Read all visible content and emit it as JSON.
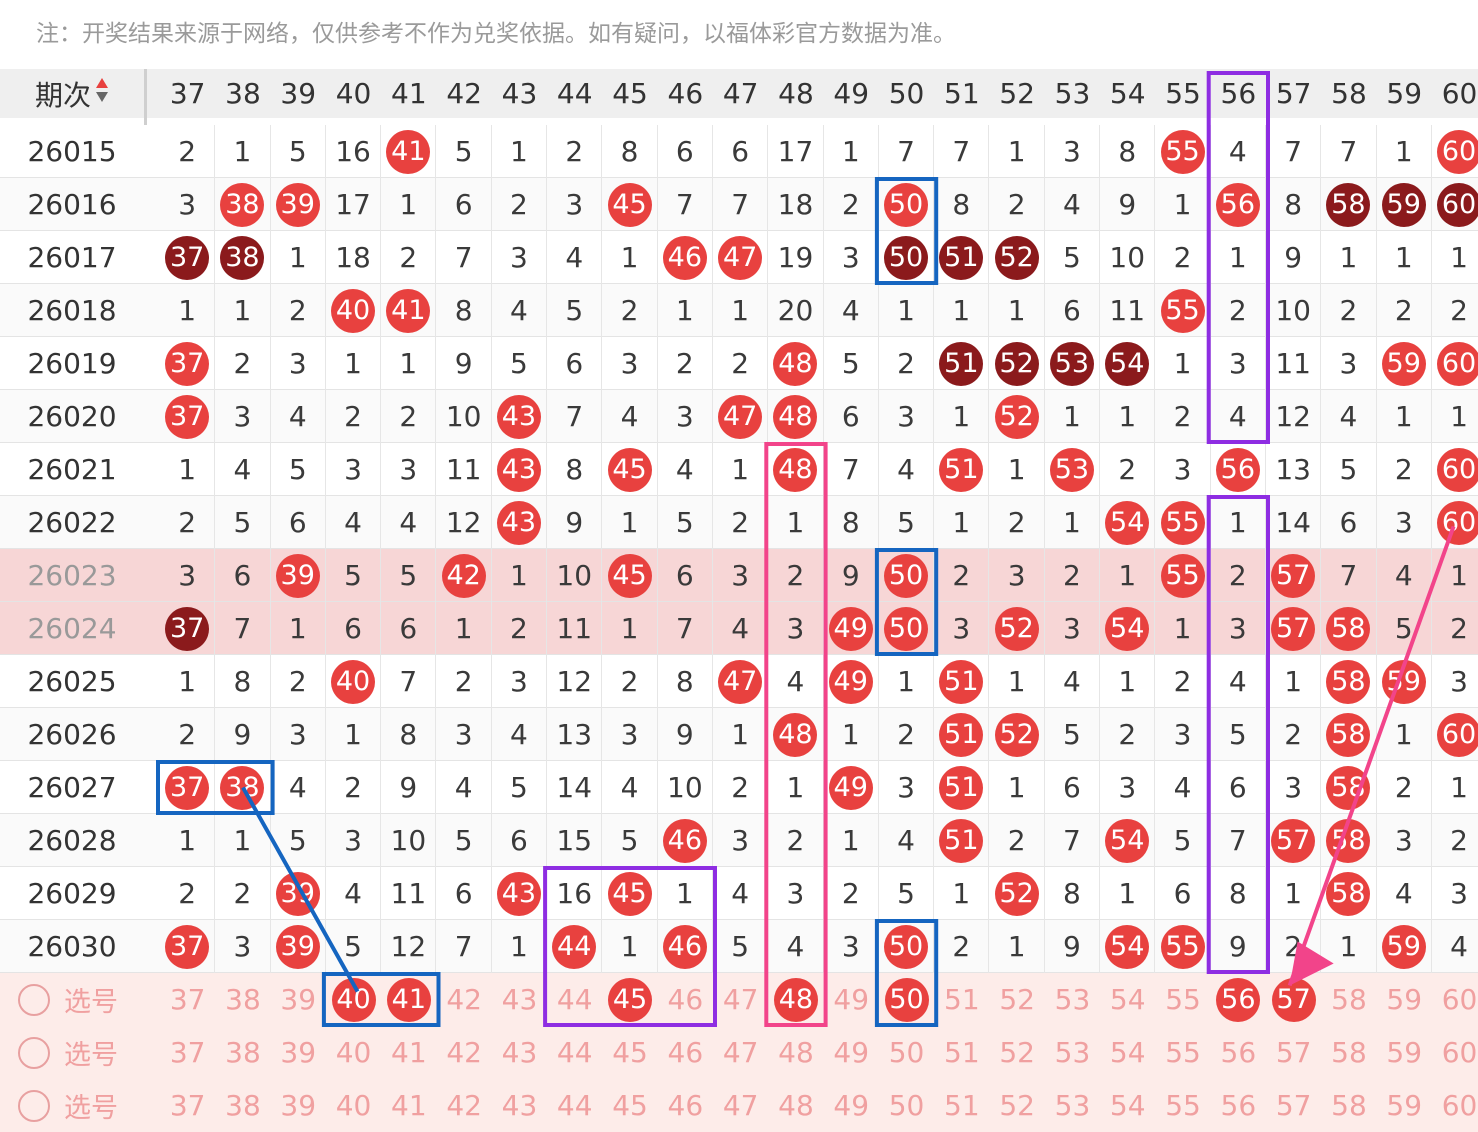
{
  "note": "注：开奖结果来源于网络，仅供参考不作为兑奖依据。如有疑问，以福体彩官方数据为准。",
  "header": {
    "period_label": "期次",
    "sort_icon": "sort-updown-icon",
    "columns": [
      "37",
      "38",
      "39",
      "40",
      "41",
      "42",
      "43",
      "44",
      "45",
      "46",
      "47",
      "48",
      "49",
      "50",
      "51",
      "52",
      "53",
      "54",
      "55",
      "56",
      "57",
      "58",
      "59",
      "60"
    ]
  },
  "colors": {
    "ball_red": "#e8413f",
    "ball_dark": "#8b1a1c",
    "text": "#3a3a3a",
    "highlight_row": "#f7d6d6",
    "select_bg": "#fdece9",
    "select_text": "#f0a0a0",
    "box_blue": "#1565c0",
    "box_purple": "#8e2de2",
    "box_pink": "#f2448a"
  },
  "rows": [
    {
      "period": "26015",
      "cells": [
        "2",
        "1",
        "5",
        "16",
        "41",
        "5",
        "1",
        "2",
        "8",
        "6",
        "6",
        "17",
        "1",
        "7",
        "7",
        "1",
        "3",
        "8",
        "55",
        "4",
        "7",
        "7",
        "1",
        "60"
      ],
      "balls": {
        "41": "r",
        "55": "r",
        "60": "r"
      }
    },
    {
      "period": "26016",
      "cells": [
        "3",
        "38",
        "39",
        "17",
        "1",
        "6",
        "2",
        "3",
        "45",
        "7",
        "7",
        "18",
        "2",
        "50",
        "8",
        "2",
        "4",
        "9",
        "1",
        "56",
        "8",
        "58",
        "59",
        "60"
      ],
      "balls": {
        "38": "r",
        "39": "r",
        "45": "r",
        "50": "r",
        "56": "r",
        "58": "d",
        "59": "d",
        "60": "d"
      }
    },
    {
      "period": "26017",
      "cells": [
        "37",
        "38",
        "1",
        "18",
        "2",
        "7",
        "3",
        "4",
        "1",
        "46",
        "47",
        "19",
        "3",
        "50",
        "51",
        "52",
        "5",
        "10",
        "2",
        "1",
        "9",
        "1",
        "1",
        "1"
      ],
      "balls": {
        "37": "d",
        "38": "d",
        "46": "r",
        "47": "r",
        "50": "d",
        "51": "d",
        "52": "d"
      }
    },
    {
      "period": "26018",
      "cells": [
        "1",
        "1",
        "2",
        "40",
        "41",
        "8",
        "4",
        "5",
        "2",
        "1",
        "1",
        "20",
        "4",
        "1",
        "1",
        "1",
        "6",
        "11",
        "55",
        "2",
        "10",
        "2",
        "2",
        "2"
      ],
      "balls": {
        "40": "r",
        "41": "r",
        "55": "r"
      }
    },
    {
      "period": "26019",
      "cells": [
        "37",
        "2",
        "3",
        "1",
        "1",
        "9",
        "5",
        "6",
        "3",
        "2",
        "2",
        "48",
        "5",
        "2",
        "51",
        "52",
        "53",
        "54",
        "1",
        "3",
        "11",
        "3",
        "59",
        "60"
      ],
      "balls": {
        "37": "r",
        "48": "r",
        "51": "d",
        "52": "d",
        "53": "d",
        "54": "d",
        "59": "r",
        "60": "r"
      }
    },
    {
      "period": "26020",
      "cells": [
        "37",
        "3",
        "4",
        "2",
        "2",
        "10",
        "43",
        "7",
        "4",
        "3",
        "47",
        "48",
        "6",
        "3",
        "1",
        "52",
        "1",
        "1",
        "2",
        "4",
        "12",
        "4",
        "1",
        "1"
      ],
      "balls": {
        "37": "r",
        "43": "r",
        "47": "r",
        "48": "r",
        "52": "r"
      }
    },
    {
      "period": "26021",
      "cells": [
        "1",
        "4",
        "5",
        "3",
        "3",
        "11",
        "43",
        "8",
        "45",
        "4",
        "1",
        "48",
        "7",
        "4",
        "51",
        "1",
        "53",
        "2",
        "3",
        "56",
        "13",
        "5",
        "2",
        "60"
      ],
      "balls": {
        "43": "r",
        "45": "r",
        "48": "r",
        "51": "r",
        "53": "r",
        "56": "r",
        "60": "r"
      }
    },
    {
      "period": "26022",
      "cells": [
        "2",
        "5",
        "6",
        "4",
        "4",
        "12",
        "43",
        "9",
        "1",
        "5",
        "2",
        "1",
        "8",
        "5",
        "1",
        "2",
        "1",
        "54",
        "55",
        "1",
        "14",
        "6",
        "3",
        "60"
      ],
      "balls": {
        "43": "r",
        "54": "r",
        "55": "r",
        "60": "r"
      }
    },
    {
      "period": "26023",
      "cells": [
        "3",
        "6",
        "39",
        "5",
        "5",
        "42",
        "1",
        "10",
        "45",
        "6",
        "3",
        "2",
        "9",
        "50",
        "2",
        "3",
        "2",
        "1",
        "55",
        "2",
        "57",
        "7",
        "4",
        "1"
      ],
      "balls": {
        "39": "r",
        "42": "r",
        "45": "r",
        "50": "r",
        "55": "r",
        "57": "r"
      }
    },
    {
      "period": "26024",
      "cells": [
        "37",
        "7",
        "1",
        "6",
        "6",
        "1",
        "2",
        "11",
        "1",
        "7",
        "4",
        "3",
        "49",
        "50",
        "3",
        "52",
        "3",
        "54",
        "1",
        "3",
        "57",
        "58",
        "5",
        "2"
      ],
      "balls": {
        "37": "d",
        "49": "r",
        "50": "r",
        "52": "r",
        "54": "r",
        "57": "r",
        "58": "r"
      }
    },
    {
      "period": "26025",
      "cells": [
        "1",
        "8",
        "2",
        "40",
        "7",
        "2",
        "3",
        "12",
        "2",
        "8",
        "47",
        "4",
        "49",
        "1",
        "51",
        "1",
        "4",
        "1",
        "2",
        "4",
        "1",
        "58",
        "59",
        "3"
      ],
      "balls": {
        "40": "r",
        "47": "r",
        "49": "r",
        "51": "r",
        "58": "r",
        "59": "r"
      }
    },
    {
      "period": "26026",
      "cells": [
        "2",
        "9",
        "3",
        "1",
        "8",
        "3",
        "4",
        "13",
        "3",
        "9",
        "1",
        "48",
        "1",
        "2",
        "51",
        "52",
        "5",
        "2",
        "3",
        "5",
        "2",
        "58",
        "1",
        "60"
      ],
      "balls": {
        "48": "r",
        "51": "r",
        "52": "r",
        "58": "r",
        "60": "r"
      }
    },
    {
      "period": "26027",
      "cells": [
        "37",
        "38",
        "4",
        "2",
        "9",
        "4",
        "5",
        "14",
        "4",
        "10",
        "2",
        "1",
        "49",
        "3",
        "51",
        "1",
        "6",
        "3",
        "4",
        "6",
        "3",
        "58",
        "2",
        "1"
      ],
      "balls": {
        "37": "r",
        "38": "r",
        "49": "r",
        "51": "r",
        "58": "r"
      }
    },
    {
      "period": "26028",
      "cells": [
        "1",
        "1",
        "5",
        "3",
        "10",
        "5",
        "6",
        "15",
        "5",
        "46",
        "3",
        "2",
        "1",
        "4",
        "51",
        "2",
        "7",
        "54",
        "5",
        "7",
        "57",
        "58",
        "3",
        "2"
      ],
      "balls": {
        "46": "r",
        "51": "r",
        "54": "r",
        "57": "r",
        "58": "r"
      }
    },
    {
      "period": "26029",
      "cells": [
        "2",
        "2",
        "39",
        "4",
        "11",
        "6",
        "43",
        "16",
        "45",
        "1",
        "4",
        "3",
        "2",
        "5",
        "1",
        "52",
        "8",
        "1",
        "6",
        "8",
        "1",
        "58",
        "4",
        "3"
      ],
      "balls": {
        "39": "r",
        "43": "r",
        "45": "r",
        "52": "r",
        "58": "r"
      }
    },
    {
      "period": "26030",
      "cells": [
        "37",
        "3",
        "39",
        "5",
        "12",
        "7",
        "1",
        "44",
        "1",
        "46",
        "5",
        "4",
        "3",
        "50",
        "2",
        "1",
        "9",
        "54",
        "55",
        "9",
        "2",
        "1",
        "59",
        "4"
      ],
      "balls": {
        "37": "r",
        "39": "r",
        "44": "r",
        "46": "r",
        "50": "r",
        "54": "r",
        "55": "r",
        "59": "r"
      }
    }
  ],
  "select_rows": [
    {
      "label": "选号",
      "selected": [
        "40",
        "41",
        "45",
        "48",
        "50",
        "56",
        "57"
      ]
    },
    {
      "label": "选号",
      "selected": []
    },
    {
      "label": "选号",
      "selected": []
    }
  ]
}
